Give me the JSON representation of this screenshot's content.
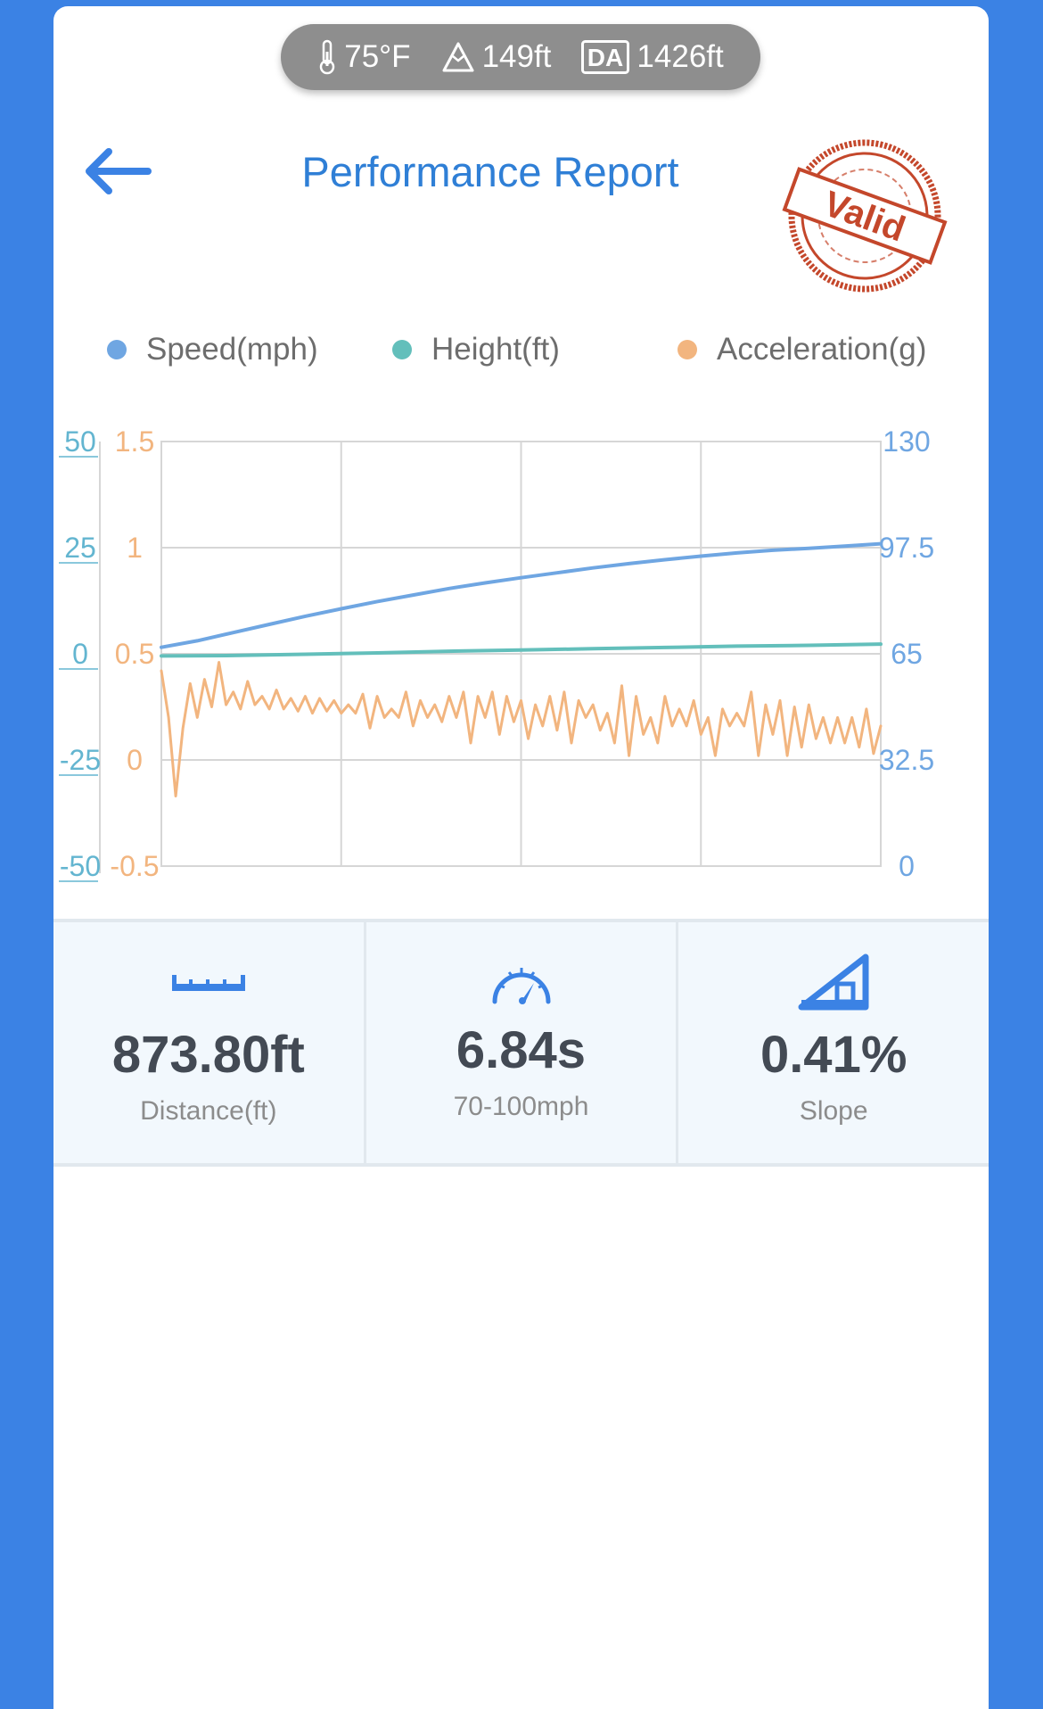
{
  "conditions": {
    "temperature": "75°F",
    "altitude": "149ft",
    "da_badge": "DA",
    "density_altitude": "1426ft"
  },
  "header": {
    "title": "Performance Report",
    "stamp_text": "Valid"
  },
  "colors": {
    "speed": "#6fa6e2",
    "height": "#63bfbb",
    "acceleration": "#f2b57f",
    "accent": "#2f7fd6",
    "stamp": "#c4472b"
  },
  "chart_data": {
    "type": "line",
    "legend_position": "top",
    "grid": true,
    "series": [
      {
        "name": "Speed(mph)",
        "axis": "right",
        "points": [
          [
            0,
            67
          ],
          [
            5,
            69
          ],
          [
            10,
            71.5
          ],
          [
            15,
            74
          ],
          [
            20,
            76.5
          ],
          [
            25,
            78.8
          ],
          [
            30,
            81
          ],
          [
            35,
            83
          ],
          [
            40,
            85
          ],
          [
            45,
            86.7
          ],
          [
            50,
            88.3
          ],
          [
            55,
            89.8
          ],
          [
            60,
            91.3
          ],
          [
            65,
            92.6
          ],
          [
            70,
            93.8
          ],
          [
            75,
            94.9
          ],
          [
            80,
            95.9
          ],
          [
            85,
            96.7
          ],
          [
            90,
            97.3
          ],
          [
            95,
            98
          ],
          [
            100,
            98.7
          ]
        ]
      },
      {
        "name": "Height(ft)",
        "axis": "left_outer",
        "points": [
          [
            0,
            -0.5
          ],
          [
            10,
            -0.4
          ],
          [
            20,
            -0.1
          ],
          [
            30,
            0.2
          ],
          [
            40,
            0.6
          ],
          [
            50,
            0.9
          ],
          [
            60,
            1.2
          ],
          [
            70,
            1.5
          ],
          [
            80,
            1.8
          ],
          [
            90,
            2.0
          ],
          [
            100,
            2.3
          ]
        ]
      },
      {
        "name": "Acceleration(g)",
        "axis": "left_inner",
        "points": [
          [
            0,
            0.42
          ],
          [
            1,
            0.2
          ],
          [
            2,
            -0.17
          ],
          [
            3,
            0.15
          ],
          [
            4,
            0.36
          ],
          [
            5,
            0.2
          ],
          [
            6,
            0.38
          ],
          [
            7,
            0.25
          ],
          [
            8,
            0.46
          ],
          [
            9,
            0.26
          ],
          [
            10,
            0.32
          ],
          [
            11,
            0.24
          ],
          [
            12,
            0.37
          ],
          [
            13,
            0.26
          ],
          [
            14,
            0.3
          ],
          [
            15,
            0.24
          ],
          [
            16,
            0.33
          ],
          [
            17,
            0.24
          ],
          [
            18,
            0.29
          ],
          [
            19,
            0.23
          ],
          [
            20,
            0.3
          ],
          [
            21,
            0.22
          ],
          [
            22,
            0.29
          ],
          [
            23,
            0.23
          ],
          [
            24,
            0.28
          ],
          [
            25,
            0.22
          ],
          [
            26,
            0.26
          ],
          [
            27,
            0.22
          ],
          [
            28,
            0.31
          ],
          [
            29,
            0.15
          ],
          [
            30,
            0.3
          ],
          [
            31,
            0.2
          ],
          [
            32,
            0.24
          ],
          [
            33,
            0.2
          ],
          [
            34,
            0.32
          ],
          [
            35,
            0.16
          ],
          [
            36,
            0.28
          ],
          [
            37,
            0.2
          ],
          [
            38,
            0.26
          ],
          [
            39,
            0.18
          ],
          [
            40,
            0.3
          ],
          [
            41,
            0.2
          ],
          [
            42,
            0.32
          ],
          [
            43,
            0.08
          ],
          [
            44,
            0.3
          ],
          [
            45,
            0.2
          ],
          [
            46,
            0.32
          ],
          [
            47,
            0.12
          ],
          [
            48,
            0.3
          ],
          [
            49,
            0.18
          ],
          [
            50,
            0.28
          ],
          [
            51,
            0.1
          ],
          [
            52,
            0.26
          ],
          [
            53,
            0.16
          ],
          [
            54,
            0.3
          ],
          [
            55,
            0.14
          ],
          [
            56,
            0.32
          ],
          [
            57,
            0.08
          ],
          [
            58,
            0.28
          ],
          [
            59,
            0.2
          ],
          [
            60,
            0.26
          ],
          [
            61,
            0.14
          ],
          [
            62,
            0.22
          ],
          [
            63,
            0.08
          ],
          [
            64,
            0.35
          ],
          [
            65,
            0.02
          ],
          [
            66,
            0.3
          ],
          [
            67,
            0.12
          ],
          [
            68,
            0.2
          ],
          [
            69,
            0.08
          ],
          [
            70,
            0.3
          ],
          [
            71,
            0.16
          ],
          [
            72,
            0.24
          ],
          [
            73,
            0.16
          ],
          [
            74,
            0.28
          ],
          [
            75,
            0.12
          ],
          [
            76,
            0.2
          ],
          [
            77,
            0.02
          ],
          [
            78,
            0.24
          ],
          [
            79,
            0.16
          ],
          [
            80,
            0.22
          ],
          [
            81,
            0.16
          ],
          [
            82,
            0.32
          ],
          [
            83,
            0.02
          ],
          [
            84,
            0.26
          ],
          [
            85,
            0.12
          ],
          [
            86,
            0.28
          ],
          [
            87,
            0.02
          ],
          [
            88,
            0.25
          ],
          [
            89,
            0.06
          ],
          [
            90,
            0.26
          ],
          [
            91,
            0.1
          ],
          [
            92,
            0.2
          ],
          [
            93,
            0.08
          ],
          [
            94,
            0.2
          ],
          [
            95,
            0.08
          ],
          [
            96,
            0.2
          ],
          [
            97,
            0.06
          ],
          [
            98,
            0.24
          ],
          [
            99,
            0.03
          ],
          [
            100,
            0.16
          ]
        ]
      }
    ],
    "xlim": [
      0,
      100
    ],
    "axes": {
      "left_outer": {
        "range": [
          -50,
          50
        ],
        "ticks": [
          "50",
          "25",
          "0",
          "-25",
          "-50"
        ]
      },
      "left_inner": {
        "range": [
          -0.5,
          1.5
        ],
        "ticks": [
          "1.5",
          "1",
          "0.5",
          "0",
          "-0.5"
        ]
      },
      "right": {
        "range": [
          0,
          130
        ],
        "ticks": [
          "130",
          "97.5",
          "65",
          "32.5",
          "0"
        ]
      }
    }
  },
  "stats": [
    {
      "icon": "ruler-icon",
      "value": "873.80ft",
      "label": "Distance(ft)"
    },
    {
      "icon": "speedometer-icon",
      "value": "6.84s",
      "label": "70-100mph"
    },
    {
      "icon": "slope-icon",
      "value": "0.41%",
      "label": "Slope"
    }
  ]
}
